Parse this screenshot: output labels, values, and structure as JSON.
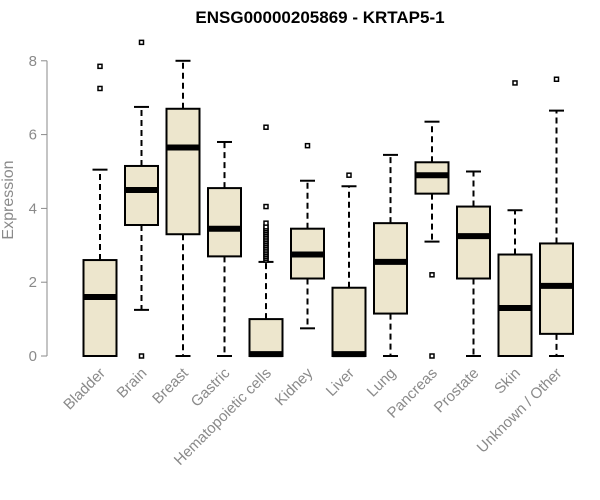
{
  "chart_data": {
    "type": "boxplot",
    "title": "ENSG00000205869 - KRTAP5-1",
    "xlabel": "",
    "ylabel": "Expression",
    "ylim": [
      0,
      8.6
    ],
    "yticks": [
      0,
      2,
      4,
      6,
      8
    ],
    "box_fill": "#ede6cd",
    "line_color": "#000000",
    "categories": [
      "Bladder",
      "Brain",
      "Breast",
      "Gastric",
      "Hematopoietic cells",
      "Kidney",
      "Liver",
      "Lung",
      "Pancreas",
      "Prostate",
      "Skin",
      "Unknown / Other"
    ],
    "boxes": [
      {
        "min": 0,
        "q1": 0,
        "median": 1.6,
        "q3": 2.6,
        "max": 5.05,
        "outliers": [
          7.25,
          7.85
        ]
      },
      {
        "min": 1.25,
        "q1": 3.55,
        "median": 4.5,
        "q3": 5.15,
        "max": 6.75,
        "outliers": [
          0,
          8.5
        ]
      },
      {
        "min": 0,
        "q1": 3.3,
        "median": 5.65,
        "q3": 6.7,
        "max": 8.0,
        "outliers": []
      },
      {
        "min": 0,
        "q1": 2.7,
        "median": 3.45,
        "q3": 4.55,
        "max": 5.8,
        "outliers": []
      },
      {
        "min": 0,
        "q1": 0,
        "median": 0.05,
        "q3": 1.0,
        "max": 2.55,
        "outliers": [
          2.6,
          2.65,
          2.7,
          2.75,
          2.8,
          2.85,
          2.9,
          2.95,
          3.0,
          3.05,
          3.1,
          3.15,
          3.2,
          3.25,
          3.3,
          3.35,
          3.4,
          3.45,
          3.5,
          3.6,
          4.05,
          6.2
        ]
      },
      {
        "min": 0.75,
        "q1": 2.1,
        "median": 2.75,
        "q3": 3.45,
        "max": 4.75,
        "outliers": [
          5.7
        ]
      },
      {
        "min": 0,
        "q1": 0,
        "median": 0.05,
        "q3": 1.85,
        "max": 4.6,
        "outliers": [
          4.9
        ]
      },
      {
        "min": 0,
        "q1": 1.15,
        "median": 2.55,
        "q3": 3.6,
        "max": 5.45,
        "outliers": []
      },
      {
        "min": 3.1,
        "q1": 4.4,
        "median": 4.9,
        "q3": 5.25,
        "max": 6.35,
        "outliers": [
          0,
          2.2
        ]
      },
      {
        "min": 0,
        "q1": 2.1,
        "median": 3.25,
        "q3": 4.05,
        "max": 5.0,
        "outliers": []
      },
      {
        "min": 0,
        "q1": 0,
        "median": 1.3,
        "q3": 2.75,
        "max": 3.95,
        "outliers": [
          7.4
        ]
      },
      {
        "min": 0,
        "q1": 0.6,
        "median": 1.9,
        "q3": 3.05,
        "max": 6.65,
        "outliers": [
          7.5
        ]
      }
    ]
  }
}
